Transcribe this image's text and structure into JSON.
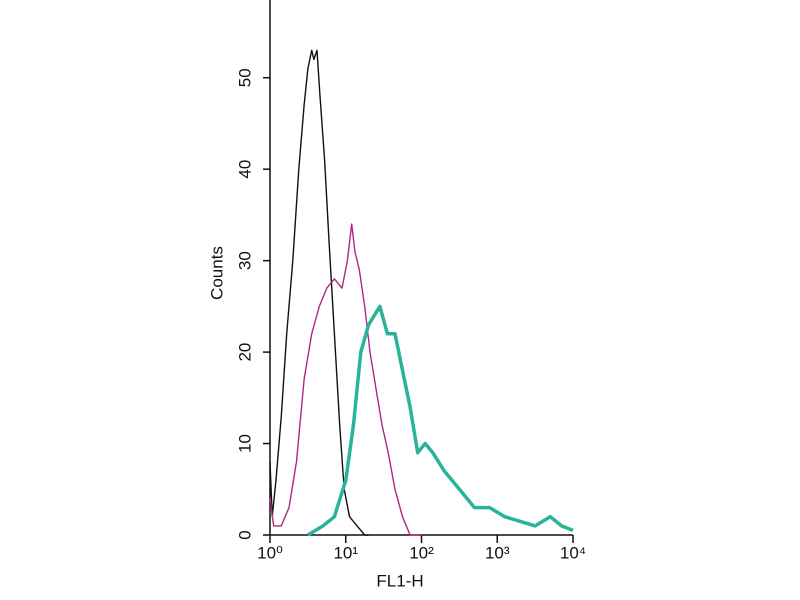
{
  "chart_data": {
    "type": "line",
    "xlabel": "FL1-H",
    "ylabel": "Counts",
    "xscale": "log",
    "xlim": [
      1,
      10000
    ],
    "xticks": [
      {
        "value": 1,
        "label": "10⁰"
      },
      {
        "value": 10,
        "label": "10¹"
      },
      {
        "value": 100,
        "label": "10²"
      },
      {
        "value": 1000,
        "label": "10³"
      },
      {
        "value": 10000,
        "label": "10⁴"
      }
    ],
    "ylim": [
      0,
      58.5
    ],
    "yticks": [
      0,
      10,
      20,
      30,
      40,
      50
    ],
    "series": [
      {
        "color": "#111111",
        "x": [
          1,
          1.07,
          1.2,
          1.41,
          1.66,
          2,
          2.4,
          2.82,
          3.16,
          3.55,
          3.8,
          4.17,
          4.57,
          5.25,
          6.03,
          7.08,
          8.32,
          9.55,
          11.2,
          14.1,
          17.8,
          20
        ],
        "values": [
          8,
          2,
          6,
          13,
          22,
          30,
          40,
          47,
          51,
          53,
          52,
          53,
          48,
          41,
          32,
          22,
          12,
          5,
          2,
          1,
          0,
          0
        ]
      },
      {
        "color": "#b0287f",
        "x": [
          1,
          1.12,
          1.41,
          1.78,
          2.24,
          2.82,
          3.55,
          4.47,
          5.62,
          7.08,
          8.91,
          10.5,
          12,
          13.2,
          15.1,
          17.8,
          20.9,
          25.1,
          30.2,
          36.3,
          44.7,
          56.2,
          70.8,
          100
        ],
        "values": [
          4,
          1,
          1,
          3,
          8,
          17,
          22,
          25,
          27,
          28,
          27,
          30,
          34,
          31,
          29,
          25,
          20,
          16,
          12,
          9,
          5,
          2,
          0,
          0
        ]
      },
      {
        "color": "#2bb39a",
        "x": [
          3.16,
          5.01,
          7.08,
          10,
          12.6,
          15.8,
          20,
          28.2,
          35.5,
          44.7,
          56.2,
          70.8,
          89.1,
          112,
          141,
          200,
          316,
          501,
          794,
          1259,
          1995,
          3162,
          5012,
          7079,
          10000
        ],
        "values": [
          0,
          1,
          2,
          6,
          12,
          20,
          23,
          25,
          22,
          22,
          18,
          14,
          9,
          10,
          9,
          7,
          5,
          3,
          3,
          2,
          1.5,
          1,
          2,
          1,
          0.5
        ]
      }
    ]
  }
}
